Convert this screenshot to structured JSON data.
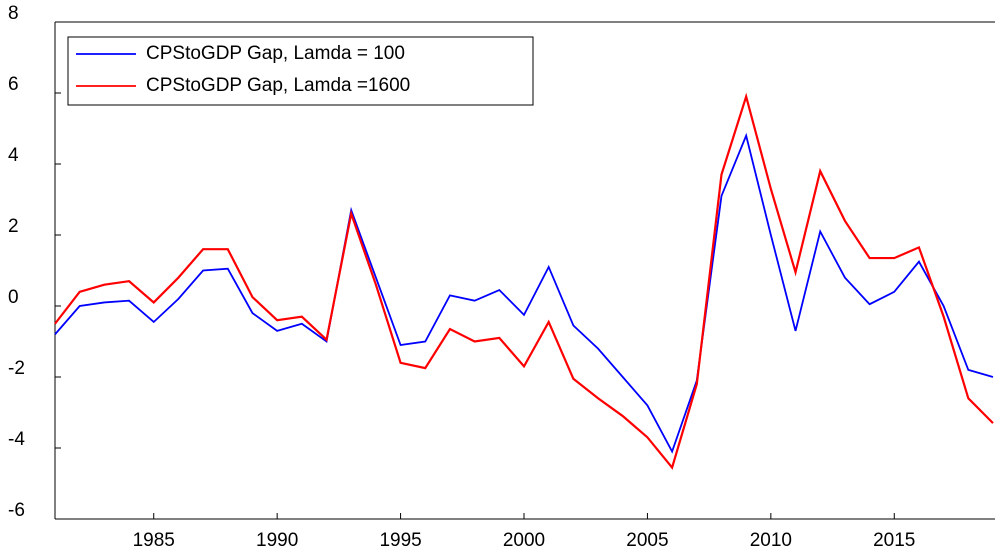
{
  "chart_data": {
    "type": "line",
    "x": [
      1981,
      1982,
      1983,
      1984,
      1985,
      1986,
      1987,
      1988,
      1989,
      1990,
      1991,
      1992,
      1993,
      1994,
      1995,
      1996,
      1997,
      1998,
      1999,
      2000,
      2001,
      2002,
      2003,
      2004,
      2005,
      2006,
      2007,
      2008,
      2009,
      2010,
      2011,
      2012,
      2013,
      2014,
      2015,
      2016,
      2017,
      2018,
      2019
    ],
    "series": [
      {
        "name": "CPStoGDP Gap, Lamda = 100",
        "color": "#0000ff",
        "values": [
          -0.8,
          0.0,
          0.1,
          0.15,
          -0.45,
          0.2,
          1.0,
          1.05,
          -0.2,
          -0.7,
          -0.5,
          -1.0,
          2.7,
          0.8,
          -1.1,
          -1.0,
          0.3,
          0.15,
          0.45,
          -0.25,
          1.1,
          -0.55,
          -1.2,
          -2.0,
          -2.8,
          -4.1,
          -2.1,
          3.1,
          4.8,
          2.0,
          -0.7,
          2.1,
          0.8,
          0.05,
          0.4,
          1.25,
          0.0,
          -1.8,
          -2.0
        ]
      },
      {
        "name": "CPStoGDP Gap, Lamda =1600",
        "color": "#ff0000",
        "values": [
          -0.5,
          0.4,
          0.6,
          0.7,
          0.1,
          0.8,
          1.6,
          1.6,
          0.25,
          -0.4,
          -0.3,
          -0.95,
          2.6,
          0.6,
          -1.6,
          -1.75,
          -0.65,
          -1.0,
          -0.9,
          -1.7,
          -0.45,
          -2.05,
          -2.6,
          -3.1,
          -3.7,
          -4.55,
          -2.2,
          3.7,
          5.9,
          3.3,
          0.95,
          3.8,
          2.4,
          1.35,
          1.35,
          1.65,
          -0.3,
          -2.6,
          -3.3
        ]
      }
    ],
    "xlim": [
      1981,
      2019
    ],
    "xticks": [
      1985,
      1990,
      1995,
      2000,
      2005,
      2010,
      2015
    ],
    "ylim": [
      -6,
      8
    ],
    "yticks": [
      -6,
      -4,
      -2,
      0,
      2,
      4,
      6,
      8
    ],
    "legend": "upper-left",
    "grid": false
  }
}
